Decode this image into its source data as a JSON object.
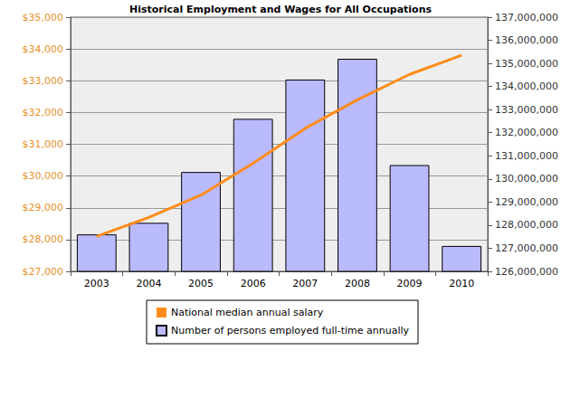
{
  "chart_data": {
    "type": "bar",
    "title": "Historical Employment and Wages for All Occupations",
    "categories": [
      "2003",
      "2004",
      "2005",
      "2006",
      "2007",
      "2008",
      "2009",
      "2010"
    ],
    "series": [
      {
        "name": "National median annual salary",
        "type": "line",
        "axis": "y",
        "color": "#ff8c1a",
        "marker": "none",
        "values": [
          28100,
          28700,
          29400,
          30400,
          31500,
          32400,
          33200,
          33800
        ]
      },
      {
        "name": "Number of persons employed full-time annually",
        "type": "bar",
        "axis": "y2",
        "color": "#babaff",
        "values": [
          127600000,
          128100000,
          130300000,
          132600000,
          134300000,
          135200000,
          130600000,
          127100000
        ]
      }
    ],
    "ylim": [
      27000,
      35000
    ],
    "yticks": [
      {
        "value": 27000,
        "label": "$27,000"
      },
      {
        "value": 28000,
        "label": "$28,000"
      },
      {
        "value": 29000,
        "label": "$29,000"
      },
      {
        "value": 30000,
        "label": "$30,000"
      },
      {
        "value": 31000,
        "label": "$31,000"
      },
      {
        "value": 32000,
        "label": "$32,000"
      },
      {
        "value": 33000,
        "label": "$33,000"
      },
      {
        "value": 34000,
        "label": "$34,000"
      },
      {
        "value": 35000,
        "label": "$35,000"
      }
    ],
    "y2lim": [
      126000000,
      137000000
    ],
    "y2ticks": [
      {
        "value": 126000000,
        "label": "126,000,000"
      },
      {
        "value": 127000000,
        "label": "127,000,000"
      },
      {
        "value": 128000000,
        "label": "128,000,000"
      },
      {
        "value": 129000000,
        "label": "129,000,000"
      },
      {
        "value": 130000000,
        "label": "130,000,000"
      },
      {
        "value": 131000000,
        "label": "131,000,000"
      },
      {
        "value": 132000000,
        "label": "132,000,000"
      },
      {
        "value": 133000000,
        "label": "133,000,000"
      },
      {
        "value": 134000000,
        "label": "134,000,000"
      },
      {
        "value": 135000000,
        "label": "135,000,000"
      },
      {
        "value": 136000000,
        "label": "136,000,000"
      },
      {
        "value": 137000000,
        "label": "137,000,000"
      }
    ],
    "grid": true,
    "legend": "bottom"
  }
}
